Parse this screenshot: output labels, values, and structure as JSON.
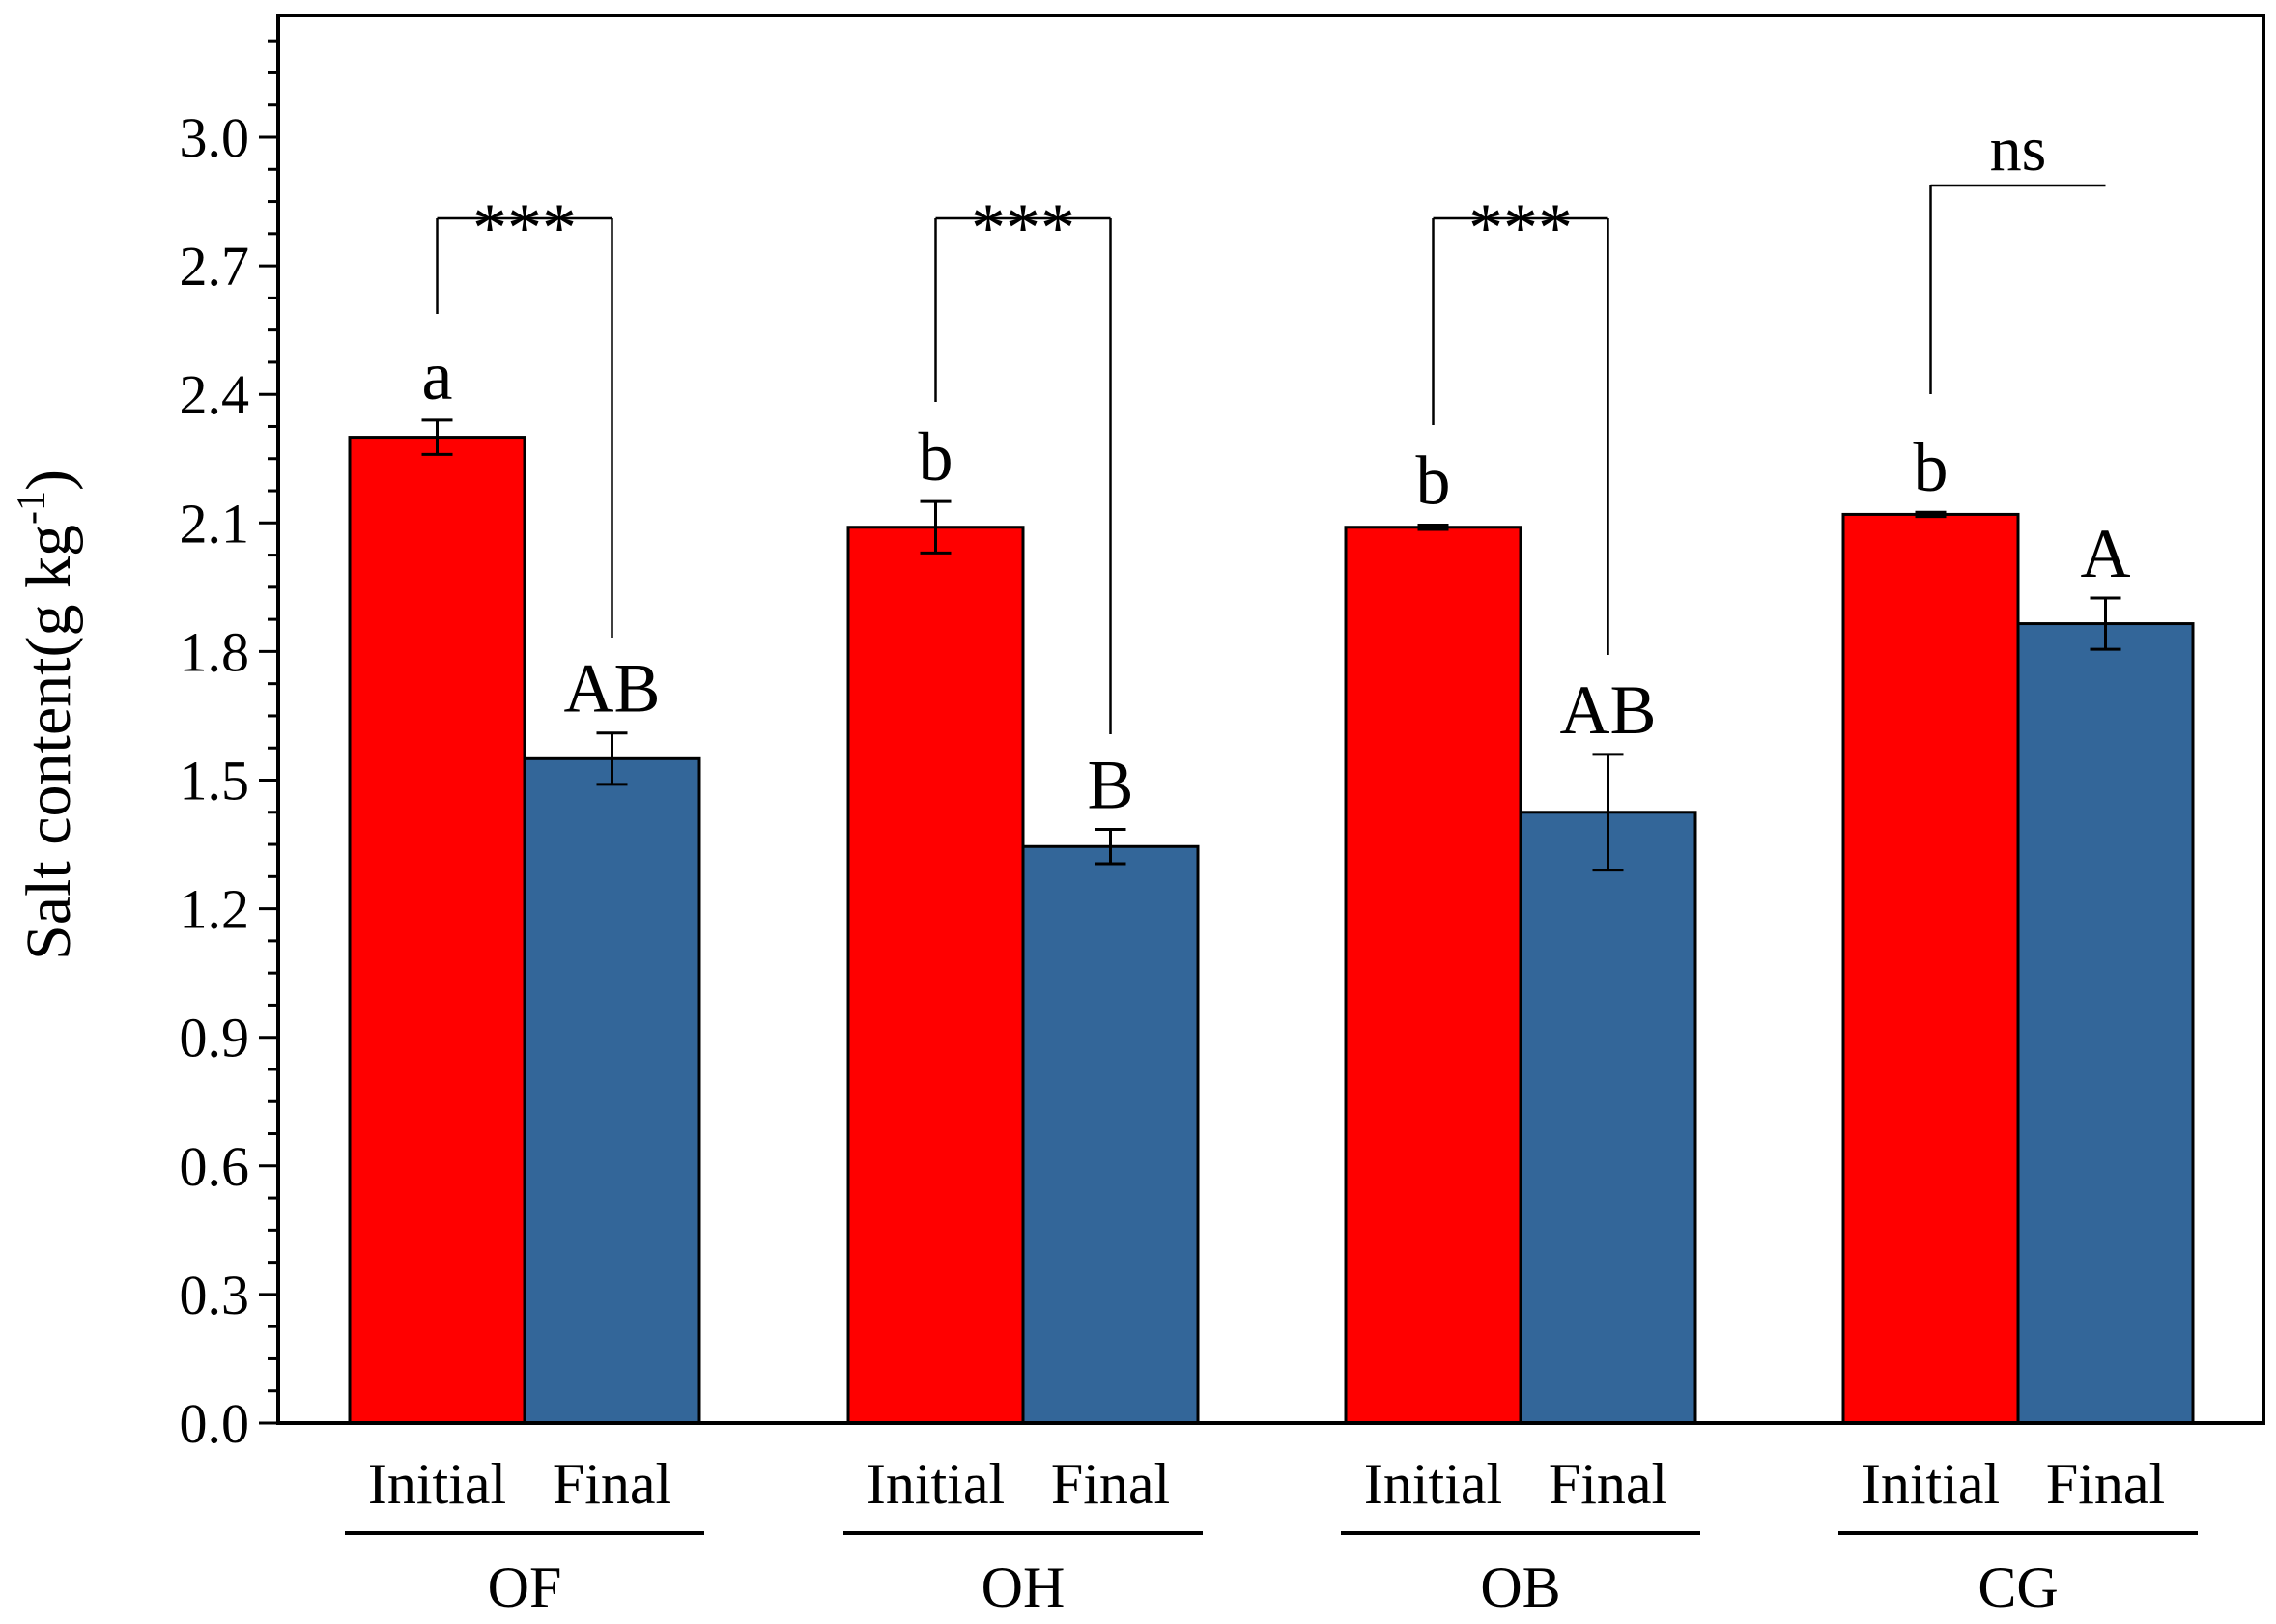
{
  "chart_data": {
    "type": "bar",
    "ylabel": "Salt content(g kg",
    "ylabel_superscript": "-1",
    "ylabel_close": ")",
    "ylim": [
      0,
      3.3
    ],
    "yticks": [
      "0.0",
      "0.3",
      "0.6",
      "0.9",
      "1.2",
      "1.5",
      "1.8",
      "2.1",
      "2.4",
      "2.7",
      "3.0"
    ],
    "categories": [
      "OF",
      "OH",
      "OB",
      "CG"
    ],
    "subcategories": [
      "Initial",
      "Final"
    ],
    "series": [
      {
        "color": "#ff0000",
        "values": [
          2.3,
          2.09,
          2.09,
          2.12
        ],
        "errors": [
          0.04,
          0.06,
          0.005,
          0.005
        ],
        "letters": [
          "a",
          "b",
          "b",
          "b"
        ]
      },
      {
        "color": "#336699",
        "values": [
          1.55,
          1.345,
          1.425,
          1.865
        ],
        "errors": [
          0.06,
          0.04,
          0.135,
          0.06
        ],
        "letters": [
          "AB",
          "B",
          "AB",
          "A"
        ]
      }
    ],
    "significance": [
      "***",
      "***",
      "***",
      "ns"
    ],
    "grid": false,
    "legend": "none"
  }
}
